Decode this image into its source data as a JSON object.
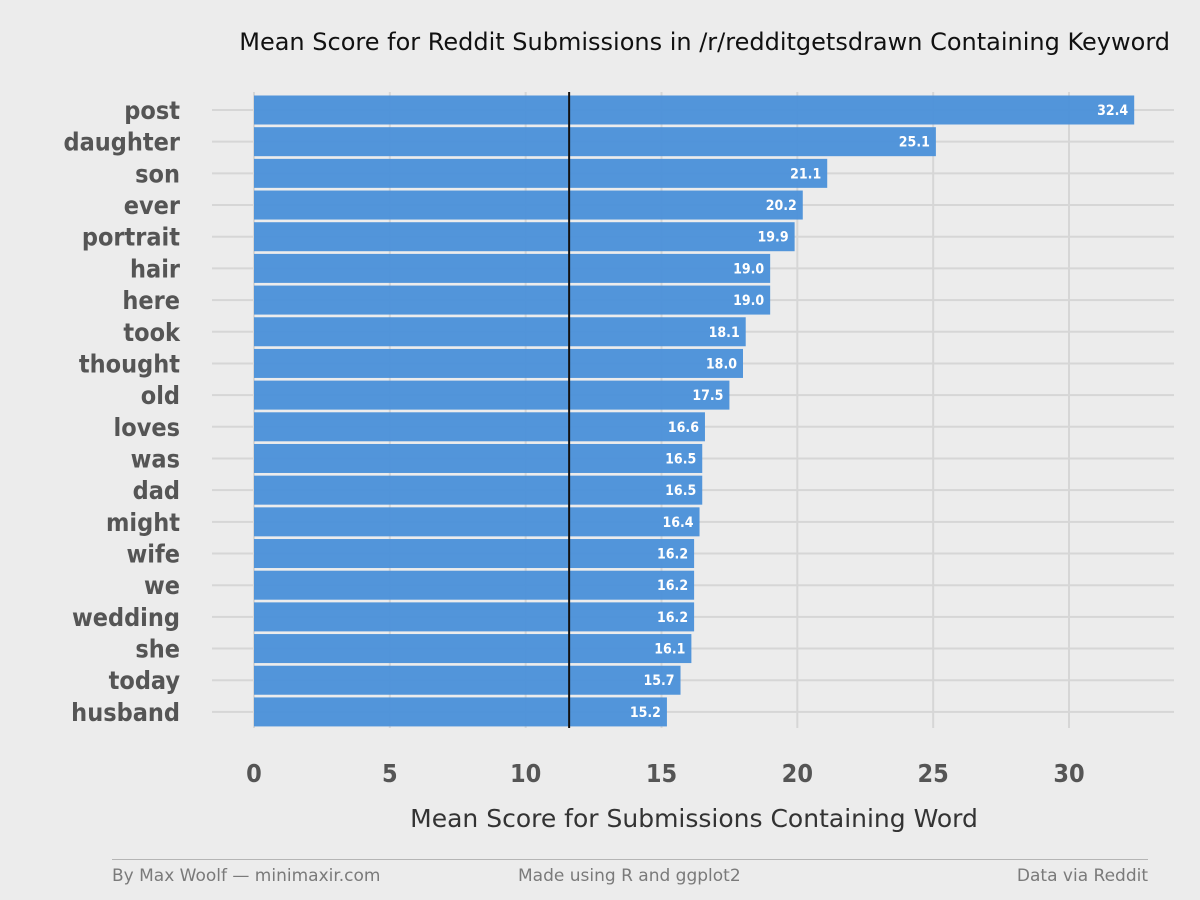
{
  "chart_data": {
    "type": "bar",
    "orientation": "horizontal",
    "title": "Mean Score for Reddit Submissions in /r/redditgetsdrawn Containing Keyword",
    "xlabel": "Mean Score for Submissions Containing Word",
    "ylabel": "",
    "categories": [
      "post",
      "daughter",
      "son",
      "ever",
      "portrait",
      "hair",
      "here",
      "took",
      "thought",
      "old",
      "loves",
      "was",
      "dad",
      "might",
      "wife",
      "we",
      "wedding",
      "she",
      "today",
      "husband"
    ],
    "values": [
      32.4,
      25.1,
      21.1,
      20.2,
      19.9,
      19.0,
      19.0,
      18.1,
      18.0,
      17.5,
      16.6,
      16.5,
      16.5,
      16.4,
      16.2,
      16.2,
      16.2,
      16.1,
      15.7,
      15.2
    ],
    "value_labels": [
      "32.4",
      "25.1",
      "21.1",
      "20.2",
      "19.9",
      "19.0",
      "19.0",
      "18.1",
      "18.0",
      "17.5",
      "16.6",
      "16.5",
      "16.5",
      "16.4",
      "16.2",
      "16.2",
      "16.2",
      "16.1",
      "15.7",
      "15.2"
    ],
    "xticks": [
      0,
      5,
      10,
      15,
      20,
      25,
      30
    ],
    "xtick_labels": [
      "0",
      "5",
      "10",
      "15",
      "20",
      "25",
      "30"
    ],
    "xlim": [
      0,
      33.9
    ],
    "reference_line": 11.6,
    "grid": true,
    "legend": "none",
    "colors": {
      "bar": "#4a90d9",
      "background": "#ececec",
      "grid": "#d6d6d6",
      "reference_line": "#111111"
    }
  },
  "footer": {
    "left": "By Max Woolf — minimaxir.com",
    "center": "Made using R and ggplot2",
    "right": "Data via Reddit"
  }
}
